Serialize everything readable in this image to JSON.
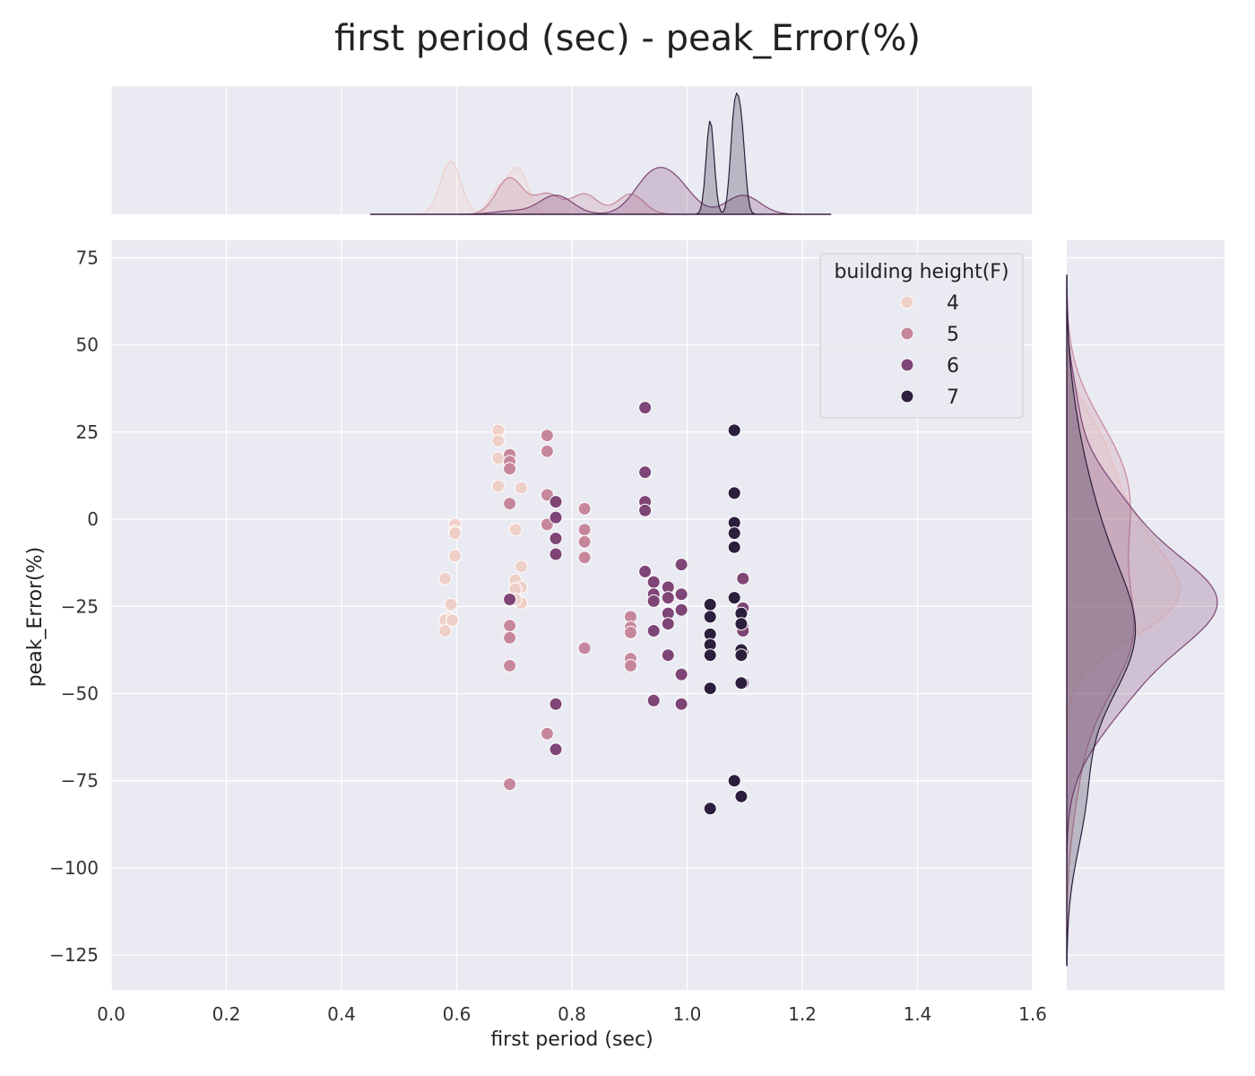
{
  "chart_data": {
    "type": "scatter",
    "title": "first period (sec) - peak_Error(%)",
    "xlabel": "first period (sec)",
    "ylabel": "peak_Error(%)",
    "xlim": [
      0.0,
      1.6
    ],
    "ylim": [
      -135,
      80
    ],
    "x_ticks": [
      0.0,
      0.2,
      0.4,
      0.6,
      0.8,
      1.0,
      1.2,
      1.4,
      1.6
    ],
    "x_tick_labels": [
      "0.0",
      "0.2",
      "0.4",
      "0.6",
      "0.8",
      "1.0",
      "1.2",
      "1.4",
      "1.6"
    ],
    "y_ticks": [
      75,
      50,
      25,
      0,
      -25,
      -50,
      -75,
      -100,
      -125
    ],
    "y_tick_labels": [
      "75",
      "50",
      "25",
      "0",
      "−25",
      "−50",
      "−75",
      "−100",
      "−125"
    ],
    "grid": true,
    "marginal_plots": "kde",
    "legend": {
      "title": "building height(F)",
      "position": "upper-right"
    },
    "series": [
      {
        "name": "4",
        "color": "#efd0c8",
        "x": [
          0.672,
          0.672,
          0.672,
          0.672,
          0.712,
          0.702,
          0.597,
          0.597,
          0.597,
          0.597,
          0.58,
          0.59,
          0.585,
          0.58,
          0.58,
          0.592,
          0.712,
          0.702,
          0.712,
          0.702,
          0.712,
          0.702
        ],
        "y": [
          25.5,
          22.5,
          17.5,
          9.5,
          9.0,
          -3.0,
          -1.5,
          -3.5,
          -4.0,
          -10.5,
          -17.0,
          -24.5,
          -28.5,
          -29.0,
          -32.0,
          -29.0,
          -13.5,
          -17.5,
          -19.5,
          -20.0,
          -24.0,
          -23.0
        ]
      },
      {
        "name": "5",
        "color": "#c6879c",
        "x": [
          0.757,
          0.757,
          0.692,
          0.692,
          0.692,
          0.692,
          0.757,
          0.757,
          0.822,
          0.822,
          0.822,
          0.822,
          0.692,
          0.692,
          0.692,
          0.822,
          0.902,
          0.902,
          0.902,
          0.902,
          0.902,
          0.692,
          0.757,
          0.692
        ],
        "y": [
          24.0,
          19.5,
          18.5,
          16.5,
          14.5,
          4.5,
          7.0,
          -1.5,
          3.0,
          -3.0,
          -6.5,
          -11.0,
          -23.0,
          -30.5,
          -34.0,
          -37.0,
          -28.0,
          -31.0,
          -32.5,
          -40.0,
          -42.0,
          -42.0,
          -61.5,
          -76.0
        ]
      },
      {
        "name": "6",
        "color": "#7e4576",
        "x": [
          0.927,
          0.927,
          0.927,
          0.927,
          0.772,
          0.772,
          0.772,
          0.772,
          0.927,
          0.99,
          0.942,
          0.942,
          0.967,
          0.967,
          0.942,
          0.99,
          0.99,
          0.967,
          0.967,
          0.942,
          0.967,
          0.99,
          0.942,
          0.99,
          1.097,
          1.097,
          1.097,
          1.097,
          1.097,
          1.097,
          0.772,
          0.772,
          0.692
        ],
        "y": [
          32.0,
          13.5,
          5.0,
          2.5,
          5.0,
          0.5,
          -5.5,
          -10.0,
          -15.0,
          -13.0,
          -18.0,
          -21.5,
          -19.5,
          -22.5,
          -23.5,
          -21.5,
          -26.0,
          -27.0,
          -30.0,
          -32.0,
          -39.0,
          -44.5,
          -52.0,
          -53.0,
          -17.0,
          -25.5,
          -31.0,
          -38.0,
          -32.0,
          -47.0,
          -53.0,
          -66.0,
          -23.0
        ]
      },
      {
        "name": "7",
        "color": "#2c1e3d",
        "x": [
          1.082,
          1.082,
          1.082,
          1.082,
          1.082,
          1.082,
          1.04,
          1.04,
          1.04,
          1.04,
          1.04,
          1.094,
          1.094,
          1.094,
          1.094,
          1.094,
          1.04,
          1.082,
          1.094,
          1.04
        ],
        "y": [
          25.5,
          7.5,
          -1.0,
          -4.0,
          -8.0,
          -22.5,
          -24.5,
          -28.0,
          -33.0,
          -36.0,
          -39.0,
          -27.0,
          -30.0,
          -37.5,
          -39.0,
          -47.0,
          -48.5,
          -75.0,
          -79.5,
          -83.0
        ]
      }
    ]
  }
}
